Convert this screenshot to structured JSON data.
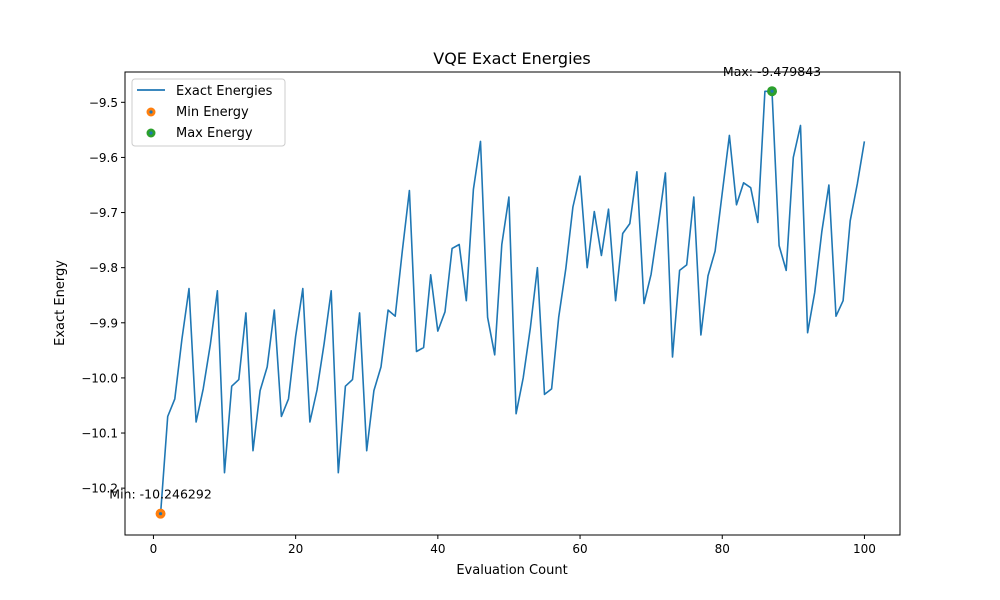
{
  "chart_data": {
    "type": "line",
    "title": "VQE Exact Energies",
    "xlabel": "Evaluation Count",
    "ylabel": "Exact Energy",
    "xlim": [
      -4,
      105
    ],
    "ylim": [
      -10.285,
      -9.445
    ],
    "xticks": [
      0,
      20,
      40,
      60,
      80,
      100
    ],
    "yticks": [
      -10.2,
      -10.1,
      -10.0,
      -9.9,
      -9.8,
      -9.7,
      -9.6,
      -9.5
    ],
    "ytick_labels": [
      "−10.2",
      "−10.1",
      "−10.0",
      "−9.9",
      "−9.8",
      "−9.7",
      "−9.6",
      "−9.5"
    ],
    "grid": false,
    "legend_position": "upper-left",
    "series": [
      {
        "name": "Exact Energies",
        "color": "#1f77b4",
        "x": [
          1,
          2,
          3,
          4,
          5,
          6,
          7,
          8,
          9,
          10,
          11,
          12,
          13,
          14,
          15,
          16,
          17,
          18,
          19,
          20,
          21,
          22,
          23,
          24,
          25,
          26,
          27,
          28,
          29,
          30,
          31,
          32,
          33,
          34,
          35,
          36,
          37,
          38,
          39,
          40,
          41,
          42,
          43,
          44,
          45,
          46,
          47,
          48,
          49,
          50,
          51,
          52,
          53,
          54,
          55,
          56,
          57,
          58,
          59,
          60,
          61,
          62,
          63,
          64,
          65,
          66,
          67,
          68,
          69,
          70,
          71,
          72,
          73,
          74,
          75,
          76,
          77,
          78,
          79,
          80,
          81,
          82,
          83,
          84,
          85,
          86,
          87,
          88,
          89,
          90,
          91,
          92,
          93,
          94,
          95,
          96,
          97,
          98,
          99,
          100
        ],
        "y": [
          -10.246,
          -10.07,
          -10.038,
          -9.93,
          -9.838,
          -10.08,
          -10.02,
          -9.94,
          -9.842,
          -10.172,
          -10.015,
          -10.003,
          -9.882,
          -10.132,
          -10.023,
          -9.98,
          -9.877,
          -10.07,
          -10.038,
          -9.925,
          -9.838,
          -10.08,
          -10.022,
          -9.938,
          -9.842,
          -10.172,
          -10.015,
          -10.003,
          -9.882,
          -10.132,
          -10.023,
          -9.98,
          -9.877,
          -9.888,
          -9.77,
          -9.66,
          -9.952,
          -9.945,
          -9.813,
          -9.915,
          -9.88,
          -9.765,
          -9.758,
          -9.86,
          -9.658,
          -9.571,
          -9.89,
          -9.958,
          -9.758,
          -9.672,
          -10.065,
          -10.0,
          -9.91,
          -9.8,
          -10.03,
          -10.02,
          -9.89,
          -9.802,
          -9.69,
          -9.634,
          -9.8,
          -9.698,
          -9.778,
          -9.694,
          -9.86,
          -9.738,
          -9.72,
          -9.626,
          -9.865,
          -9.812,
          -9.722,
          -9.628,
          -9.962,
          -9.805,
          -9.795,
          -9.672,
          -9.922,
          -9.815,
          -9.77,
          -9.665,
          -9.56,
          -9.686,
          -9.646,
          -9.655,
          -9.718,
          -9.48,
          -9.48,
          -9.76,
          -9.805,
          -9.6,
          -9.542,
          -9.918,
          -9.845,
          -9.735,
          -9.65,
          -9.888,
          -9.86,
          -9.715,
          -9.648,
          -9.571
        ]
      },
      {
        "name": "Min Energy",
        "color": "#ff7f0e",
        "x": [
          1
        ],
        "y": [
          -10.246292
        ]
      },
      {
        "name": "Max Energy",
        "color": "#2ca02c",
        "x": [
          87
        ],
        "y": [
          -9.479843
        ]
      }
    ],
    "annotations": [
      {
        "text": "Min: -10.246292",
        "x": 1,
        "y": -10.246292
      },
      {
        "text": "Max: -9.479843",
        "x": 87,
        "y": -9.479843
      }
    ]
  }
}
